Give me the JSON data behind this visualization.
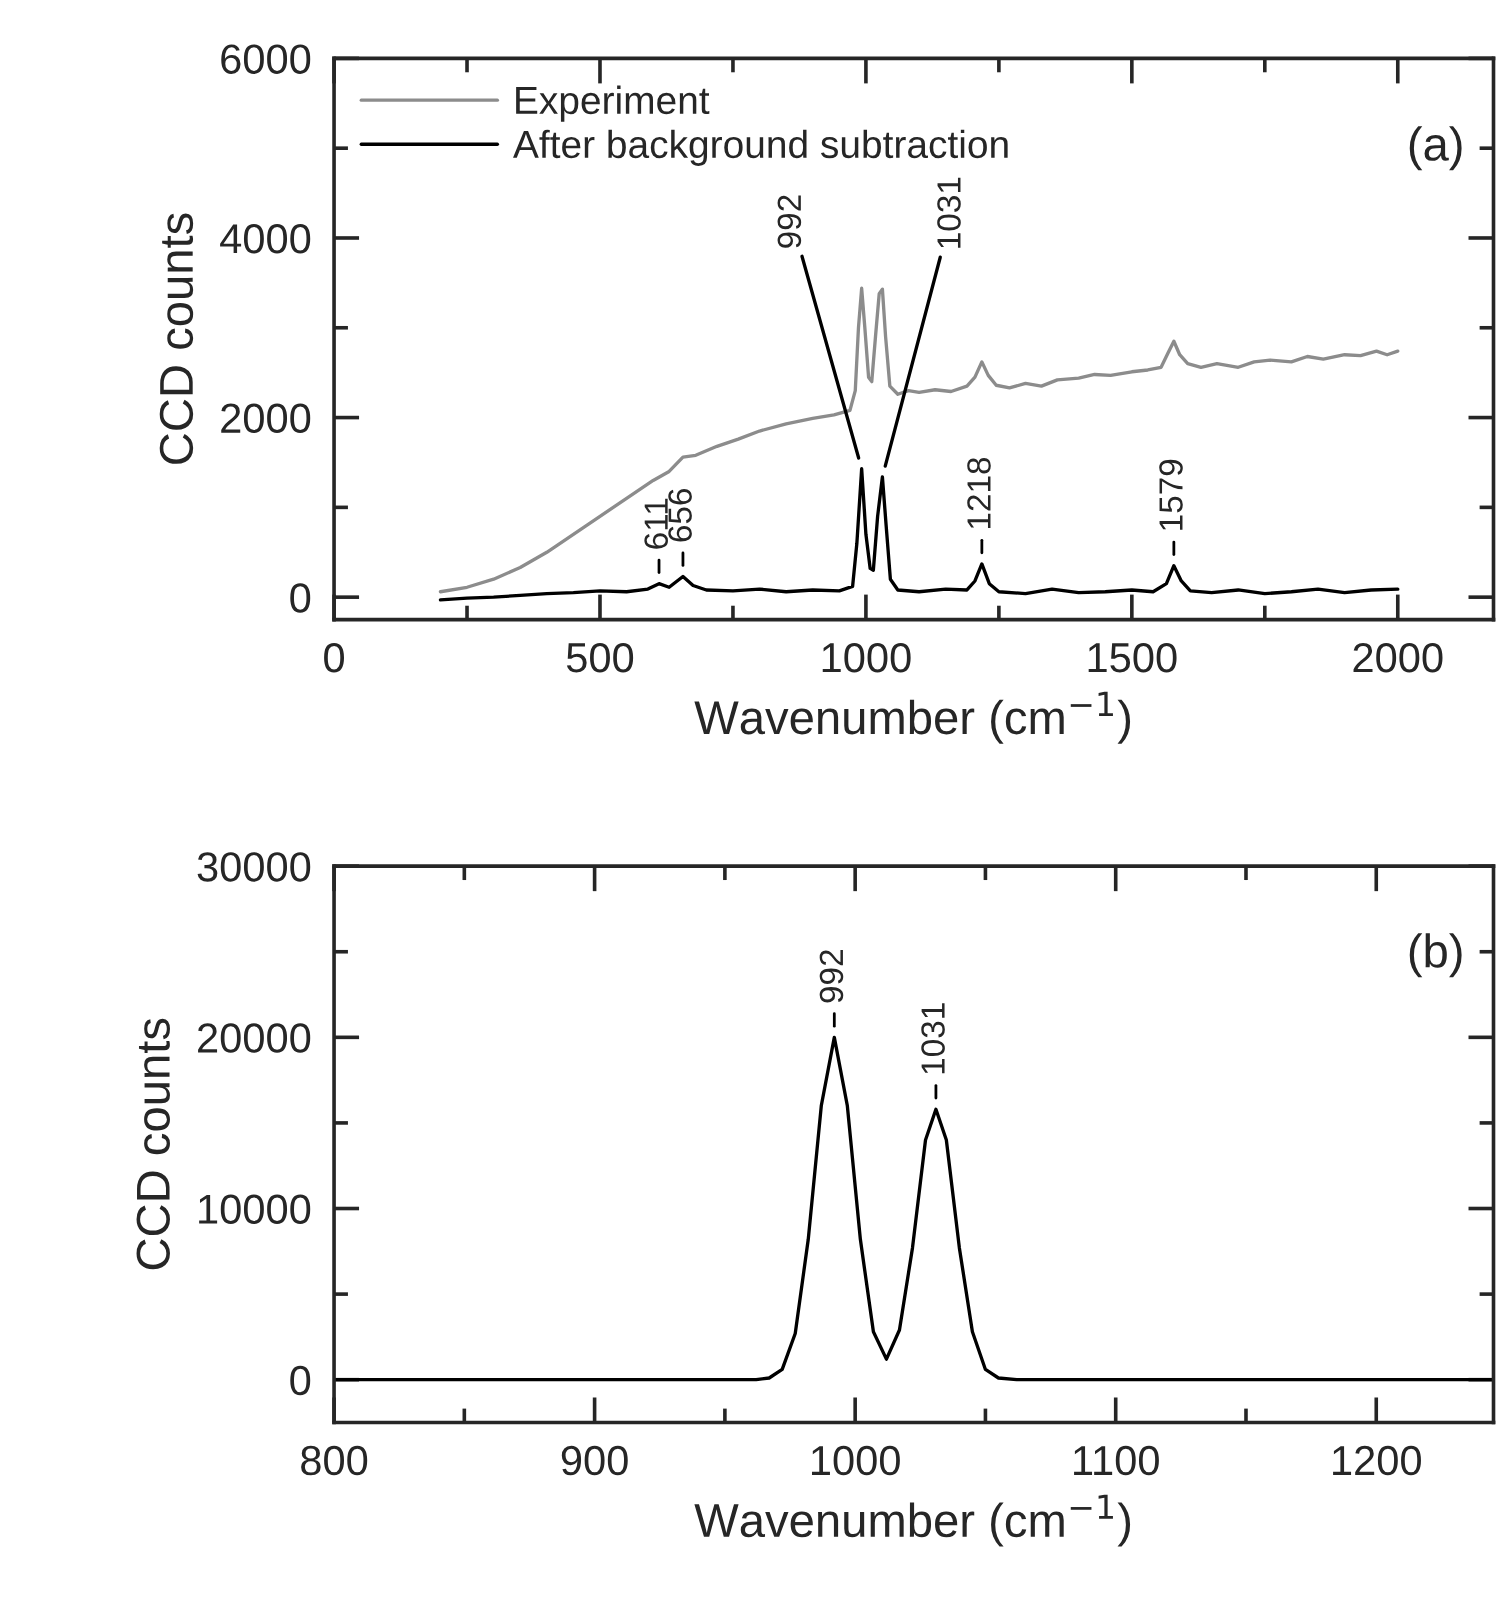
{
  "chart_data": [
    {
      "type": "line",
      "xlabel": "Wavenumber (cm$^{−1}$)",
      "ylabel": "CCD counts",
      "legend": "top left",
      "xlim": [
        0,
        2180
      ],
      "ylim": [
        -250,
        6000
      ],
      "xticks": [
        0,
        {
          "value": 250,
          "label": null
        },
        500,
        {
          "value": 750,
          "label": null
        },
        1000,
        {
          "value": 1250,
          "label": null
        },
        1500,
        {
          "value": 1750,
          "label": null
        },
        2000
      ],
      "yticks": [
        0,
        {
          "value": 1000,
          "label": null
        },
        2000,
        {
          "value": 3000,
          "label": null
        },
        4000,
        {
          "value": 5000,
          "label": null
        },
        6000
      ],
      "series": [
        {
          "name": "Experiment",
          "color": "#8c8c8c",
          "x": [
            200,
            250,
            300,
            350,
            400,
            450,
            500,
            550,
            600,
            630,
            656,
            680,
            720,
            760,
            800,
            850,
            900,
            940,
            970,
            980,
            986,
            992,
            998,
            1005,
            1011,
            1018,
            1025,
            1031,
            1037,
            1045,
            1060,
            1080,
            1100,
            1130,
            1160,
            1190,
            1205,
            1218,
            1230,
            1245,
            1270,
            1300,
            1330,
            1360,
            1400,
            1430,
            1460,
            1500,
            1530,
            1555,
            1568,
            1579,
            1590,
            1605,
            1630,
            1660,
            1700,
            1730,
            1760,
            1800,
            1830,
            1860,
            1900,
            1930,
            1960,
            1980,
            2000
          ],
          "values": [
            60,
            110,
            200,
            330,
            500,
            700,
            900,
            1100,
            1300,
            1400,
            1560,
            1580,
            1680,
            1760,
            1850,
            1930,
            1990,
            2030,
            2080,
            2300,
            3000,
            3440,
            3000,
            2450,
            2400,
            2900,
            3380,
            3430,
            2900,
            2350,
            2260,
            2300,
            2280,
            2310,
            2290,
            2350,
            2450,
            2620,
            2470,
            2360,
            2330,
            2380,
            2350,
            2420,
            2440,
            2480,
            2470,
            2510,
            2530,
            2560,
            2720,
            2850,
            2700,
            2600,
            2560,
            2600,
            2560,
            2620,
            2640,
            2620,
            2680,
            2650,
            2700,
            2690,
            2740,
            2700,
            2740
          ]
        },
        {
          "name": "After background subtraction",
          "color": "#000000",
          "x": [
            200,
            250,
            300,
            350,
            400,
            450,
            500,
            550,
            590,
            611,
            630,
            656,
            675,
            700,
            750,
            800,
            850,
            900,
            950,
            975,
            983,
            992,
            1000,
            1008,
            1014,
            1022,
            1031,
            1038,
            1046,
            1060,
            1100,
            1150,
            1190,
            1205,
            1218,
            1232,
            1250,
            1300,
            1350,
            1400,
            1450,
            1500,
            1540,
            1565,
            1579,
            1593,
            1610,
            1650,
            1700,
            1750,
            1800,
            1850,
            1900,
            1950,
            2000
          ],
          "values": [
            -30,
            -10,
            0,
            20,
            40,
            50,
            70,
            60,
            90,
            150,
            110,
            230,
            130,
            80,
            70,
            90,
            60,
            80,
            70,
            120,
            600,
            1430,
            700,
            320,
            300,
            900,
            1340,
            800,
            200,
            80,
            60,
            90,
            80,
            180,
            370,
            150,
            60,
            40,
            90,
            50,
            60,
            80,
            60,
            150,
            350,
            180,
            70,
            50,
            80,
            40,
            60,
            90,
            50,
            80,
            90
          ]
        }
      ],
      "annotations": [
        {
          "text": "611",
          "x": 611,
          "y": 150
        },
        {
          "text": "656",
          "x": 656,
          "y": 230
        },
        {
          "text": "992",
          "x": 992,
          "y": 1430
        },
        {
          "text": "1031",
          "x": 1031,
          "y": 1340
        },
        {
          "text": "1218",
          "x": 1218,
          "y": 370
        },
        {
          "text": "1579",
          "x": 1579,
          "y": 350
        },
        "(a)"
      ]
    },
    {
      "type": "line",
      "xlabel": "Wavenumber (cm$^{−1}$)",
      "ylabel": "CCD counts",
      "xlim": [
        800,
        1245
      ],
      "ylim": [
        -2500,
        30000
      ],
      "xticks": [
        800,
        {
          "value": 850,
          "label": null
        },
        900,
        {
          "value": 950,
          "label": null
        },
        1000,
        {
          "value": 1050,
          "label": null
        },
        1100,
        {
          "value": 1150,
          "label": null
        },
        1200
      ],
      "yticks": [
        0,
        {
          "value": 5000,
          "label": null
        },
        10000,
        {
          "value": 15000,
          "label": null
        },
        20000,
        {
          "value": 25000,
          "label": null
        },
        30000
      ],
      "series": [
        {
          "color": "#000000",
          "x": [
            800,
            850,
            900,
            952,
            962,
            967,
            972,
            977,
            982,
            987,
            992,
            997,
            1002,
            1007,
            1012,
            1017,
            1022,
            1027,
            1031,
            1035,
            1040,
            1045,
            1050,
            1055,
            1062,
            1100,
            1150,
            1200,
            1245
          ],
          "values": [
            0,
            0,
            0,
            0,
            0,
            100,
            600,
            2700,
            8200,
            16000,
            20000,
            16000,
            8200,
            2800,
            1200,
            2900,
            7700,
            14000,
            15800,
            14000,
            7700,
            2800,
            600,
            100,
            0,
            0,
            0,
            0,
            0
          ]
        }
      ],
      "annotations": [
        {
          "text": "992",
          "x": 992,
          "y": 20000
        },
        {
          "text": "1031",
          "x": 1031,
          "y": 15800
        },
        "(b)"
      ]
    }
  ]
}
